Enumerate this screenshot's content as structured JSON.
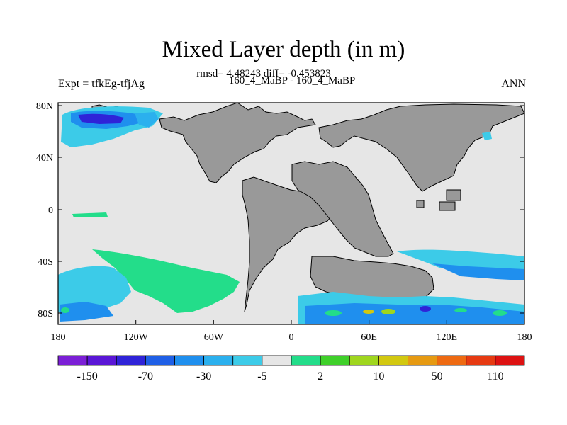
{
  "title": "Mixed Layer depth (in m)",
  "stats_line": "rmsd= 4.48243 diff= -0.453823",
  "cases_line": "160_4_MaBP - 160_4_MaBP",
  "left_label": "Expt = tfkEg-tfjAg",
  "right_label": "ANN",
  "lat_ticks": [
    "80N",
    "40N",
    "0",
    "40S",
    "80S"
  ],
  "lon_ticks": [
    "180",
    "120W",
    "60W",
    "0",
    "60E",
    "120E",
    "180"
  ],
  "colorbar": {
    "colors": [
      "#7b1fd6",
      "#5a16d6",
      "#2f23d8",
      "#1f5fe6",
      "#1f8fee",
      "#2bb0ee",
      "#3ccbe8",
      "#e6e6e6",
      "#23dd8a",
      "#3fd02a",
      "#9fd61e",
      "#d2c810",
      "#e69a12",
      "#ee6a12",
      "#e63a12",
      "#dd1212"
    ],
    "labels": [
      "-150",
      "-70",
      "-30",
      "-5",
      "2",
      "10",
      "50",
      "110"
    ]
  },
  "colors": {
    "ocean_background": "#e6e6e6",
    "land": "#999999"
  }
}
